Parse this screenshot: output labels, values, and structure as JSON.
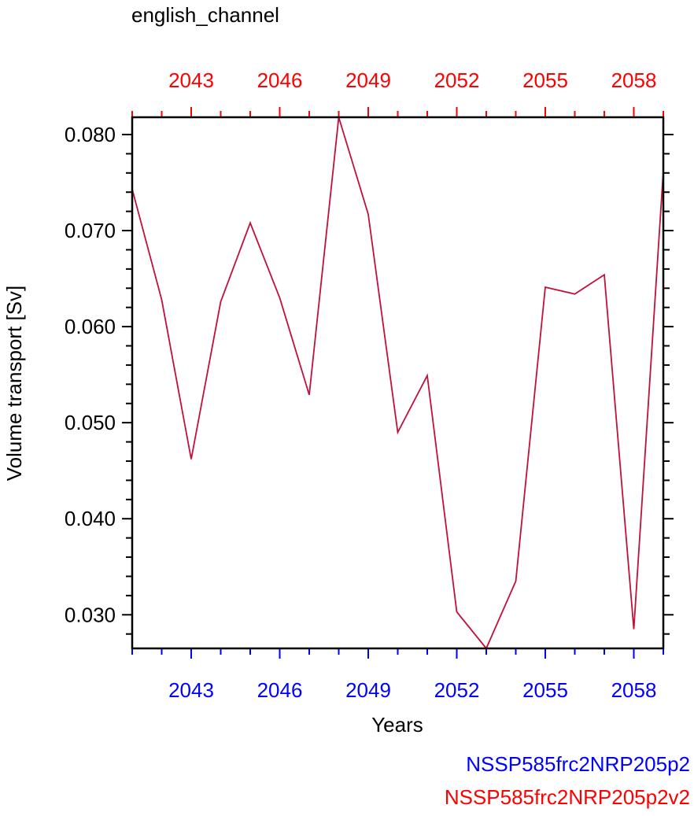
{
  "chart_data": {
    "type": "line",
    "title": "english_channel",
    "xlabel": "Years",
    "ylabel": "Volume transport [Sv]",
    "xlim": [
      2041,
      2059
    ],
    "ylim": [
      0.0265,
      0.0818
    ],
    "x_ticks": [
      2043,
      2046,
      2049,
      2052,
      2055,
      2058
    ],
    "x_tick_labels": [
      "2043",
      "2046",
      "2049",
      "2052",
      "2055",
      "2058"
    ],
    "y_ticks": [
      0.03,
      0.04,
      0.05,
      0.06,
      0.07,
      0.08
    ],
    "y_tick_labels": [
      "0.030",
      "0.040",
      "0.050",
      "0.060",
      "0.070",
      "0.080"
    ],
    "bottom_axis_color": "#0000ff",
    "top_axis_color": "#ff0000",
    "line_color": "#c0103c",
    "grid": false,
    "series": [
      {
        "x": [
          2041,
          2042,
          2043,
          2044,
          2045,
          2046,
          2047,
          2048,
          2049,
          2050,
          2051,
          2052,
          2053,
          2054,
          2055,
          2056,
          2057,
          2058,
          2059
        ],
        "values": [
          0.0743,
          0.0628,
          0.0462,
          0.0626,
          0.0708,
          0.063,
          0.0529,
          0.0818,
          0.0717,
          0.049,
          0.0549,
          0.0303,
          0.0265,
          0.0335,
          0.0641,
          0.0634,
          0.0654,
          0.0285,
          0.0762
        ]
      }
    ],
    "legend": [
      {
        "label": "NSSP585frc2NRP205p2",
        "color": "#0000ff"
      },
      {
        "label": "NSSP585frc2NRP205p2v2",
        "color": "#ff0000"
      }
    ]
  }
}
